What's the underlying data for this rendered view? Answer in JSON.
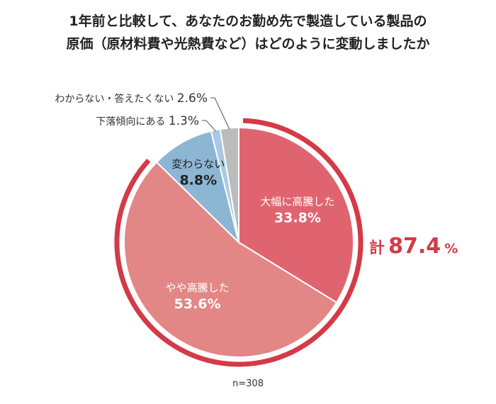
{
  "title": {
    "line1": "1年前と比較して、あなたのお勤め先で製造している製品の",
    "line2": "原価（原材料費や光熱費など）はどのように変動しましたか"
  },
  "chart_data": {
    "type": "pie",
    "slices": [
      {
        "label": "大幅に高騰した",
        "value": 33.8,
        "value_text": "33.8%",
        "color": "#e06470"
      },
      {
        "label": "やや高騰した",
        "value": 53.6,
        "value_text": "53.6%",
        "color": "#e38686"
      },
      {
        "label": "変わらない",
        "value": 8.8,
        "value_text": "8.8%",
        "color": "#8db5d4"
      },
      {
        "label": "下落傾向にある",
        "value": 1.3,
        "value_text": "1.3%",
        "color": "#a9c9e2"
      },
      {
        "label": "わからない・答えたくない",
        "value": 2.6,
        "value_text": "2.6%",
        "color": "#bcbcbc"
      }
    ],
    "total": {
      "prefix": "計",
      "value": "87.4",
      "unit": "%",
      "color": "#d43a47"
    },
    "note": "n=308"
  }
}
